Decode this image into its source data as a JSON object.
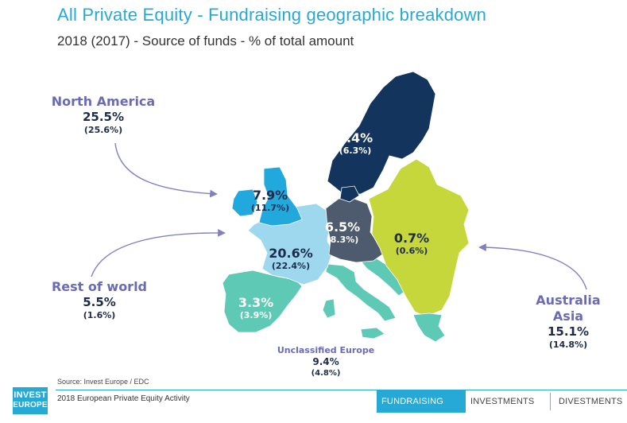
{
  "title": "All Private Equity - Fundraising geographic breakdown",
  "subtitle": "2018 (2017) - Source of funds - % of total amount",
  "external": {
    "north_america": {
      "name": "North America",
      "pct": "25.5%",
      "prev": "(25.6%)"
    },
    "rest_of_world": {
      "name": "Rest of world",
      "pct": "5.5%",
      "prev": "(1.6%)"
    },
    "australia_asia": {
      "name_line1": "Australia",
      "name_line2": "Asia",
      "pct": "15.1%",
      "prev": "(14.8%)"
    },
    "unclassified": {
      "name": "Unclassified Europe",
      "pct": "9.4%",
      "prev": "(4.8%)"
    }
  },
  "regions": {
    "nordics": {
      "pct": "5.4%",
      "prev": "(6.3%)",
      "color": "#13345c"
    },
    "uk_ireland": {
      "pct": "7.9%",
      "prev": "(11.7%)",
      "color": "#21a8dc"
    },
    "dach": {
      "pct": "6.5%",
      "prev": "(8.3%)",
      "color": "#4e5b6e"
    },
    "cee": {
      "pct": "0.7%",
      "prev": "(0.6%)",
      "color": "#c5d73a"
    },
    "france_benelux": {
      "pct": "20.6%",
      "prev": "(22.4%)",
      "color": "#9ed8ef"
    },
    "southern_europe": {
      "pct": "3.3%",
      "prev": "(3.9%)",
      "color": "#5ec9b4"
    }
  },
  "chart_data": {
    "type": "map",
    "title": "All Private Equity - Fundraising geographic breakdown",
    "subtitle": "2018 (2017) - Source of funds - % of total amount",
    "series": [
      {
        "name": "2018",
        "values": [
          5.4,
          7.9,
          6.5,
          0.7,
          20.6,
          3.3,
          25.5,
          5.5,
          15.1,
          9.4
        ]
      },
      {
        "name": "2017",
        "values": [
          6.3,
          11.7,
          8.3,
          0.6,
          22.4,
          3.9,
          25.6,
          1.6,
          14.8,
          4.8
        ]
      }
    ],
    "categories": [
      "",
      "",
      "",
      "",
      "",
      "",
      "North America",
      "Rest of world",
      "Australia Asia",
      "Unclassified Europe"
    ]
  },
  "footer": {
    "source": "Source: Invest Europe / EDC",
    "report": "2018 European Private Equity Activity",
    "logo_line1": "INVEST",
    "logo_line2": "EUROPE",
    "tabs": [
      "FUNDRAISING",
      "INVESTMENTS",
      "DIVESTMENTS"
    ]
  },
  "colors": {
    "accent": "#27a9d6",
    "label_purple": "#6b6bb5",
    "dark_text": "#1e2b4a"
  }
}
